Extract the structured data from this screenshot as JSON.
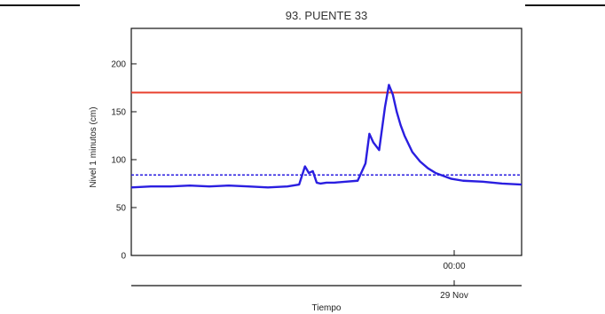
{
  "chart_data": {
    "type": "line",
    "title": "93. PUENTE 33",
    "xlabel": "Tiempo",
    "ylabel": "Nivel 1 minutos (cm)",
    "ylim": [
      0,
      237
    ],
    "yticks": [
      0,
      50,
      100,
      150,
      200
    ],
    "x_time_labels": {
      "time": "00:00",
      "date": "29 Nov"
    },
    "grid": false,
    "series": [
      {
        "values_x": [
          0.0,
          0.05,
          0.1,
          0.15,
          0.2,
          0.25,
          0.3,
          0.35,
          0.4,
          0.43,
          0.445,
          0.455,
          0.465,
          0.475,
          0.485,
          0.5,
          0.52,
          0.55,
          0.58,
          0.6,
          0.61,
          0.62,
          0.635,
          0.65,
          0.66,
          0.67,
          0.68,
          0.69,
          0.7,
          0.72,
          0.74,
          0.76,
          0.78,
          0.8,
          0.82,
          0.85,
          0.9,
          0.95,
          1.0
        ],
        "values_y": [
          71,
          72,
          72,
          73,
          72,
          73,
          72,
          71,
          72,
          74,
          93,
          86,
          88,
          76,
          75,
          76,
          76,
          77,
          78,
          96,
          127,
          118,
          110,
          155,
          178,
          168,
          150,
          136,
          125,
          108,
          98,
          91,
          86,
          83,
          80,
          78,
          77,
          75,
          74
        ],
        "color": "#2a1ee0"
      }
    ],
    "thresholds": [
      {
        "value": 170,
        "style": "solid",
        "color": "#e8402e"
      },
      {
        "value": 84,
        "style": "dotted",
        "color": "#2a1ee0"
      }
    ]
  }
}
